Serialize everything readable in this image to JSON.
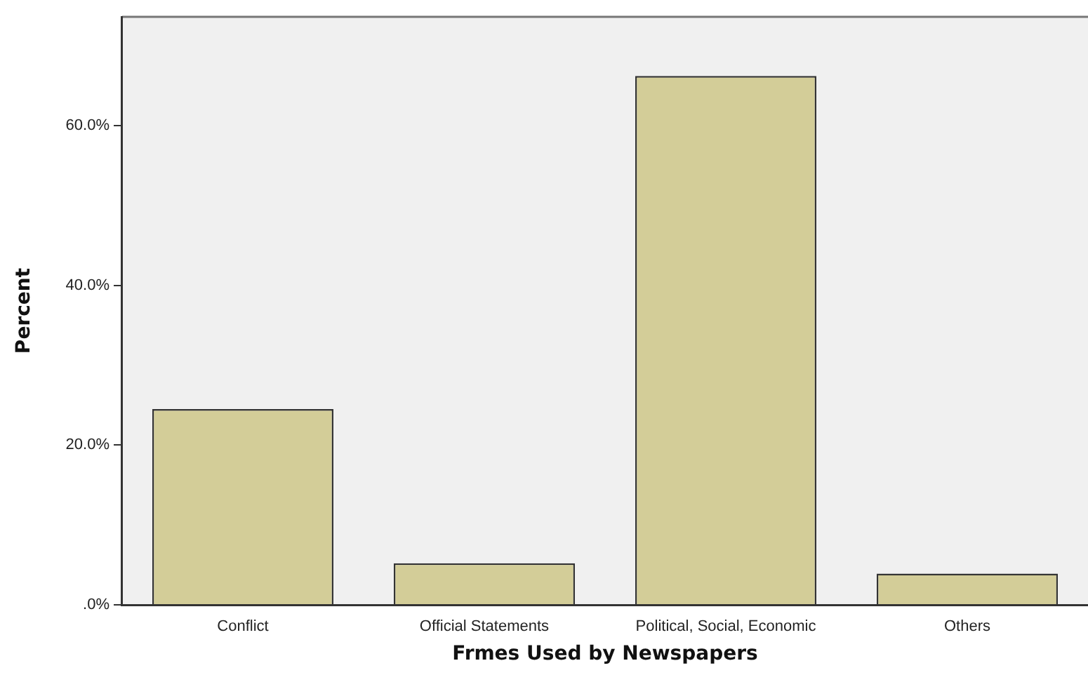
{
  "chart_data": {
    "type": "bar",
    "xlabel": "Frmes Used by Newspapers",
    "ylabel": "Percent",
    "categories": [
      "Conflict",
      "Official Statements",
      "Political, Social, Economic",
      "Others"
    ],
    "values": [
      24.5,
      5.2,
      66.2,
      3.9
    ],
    "color": "#d3cd98",
    "ylim": [
      0,
      73.6
    ],
    "yticks": [
      {
        "value": 0,
        "label": ".0%"
      },
      {
        "value": 20,
        "label": "20.0%"
      },
      {
        "value": 40,
        "label": "40.0%"
      },
      {
        "value": 60,
        "label": "60.0%"
      }
    ],
    "grid": false,
    "legend": false
  }
}
